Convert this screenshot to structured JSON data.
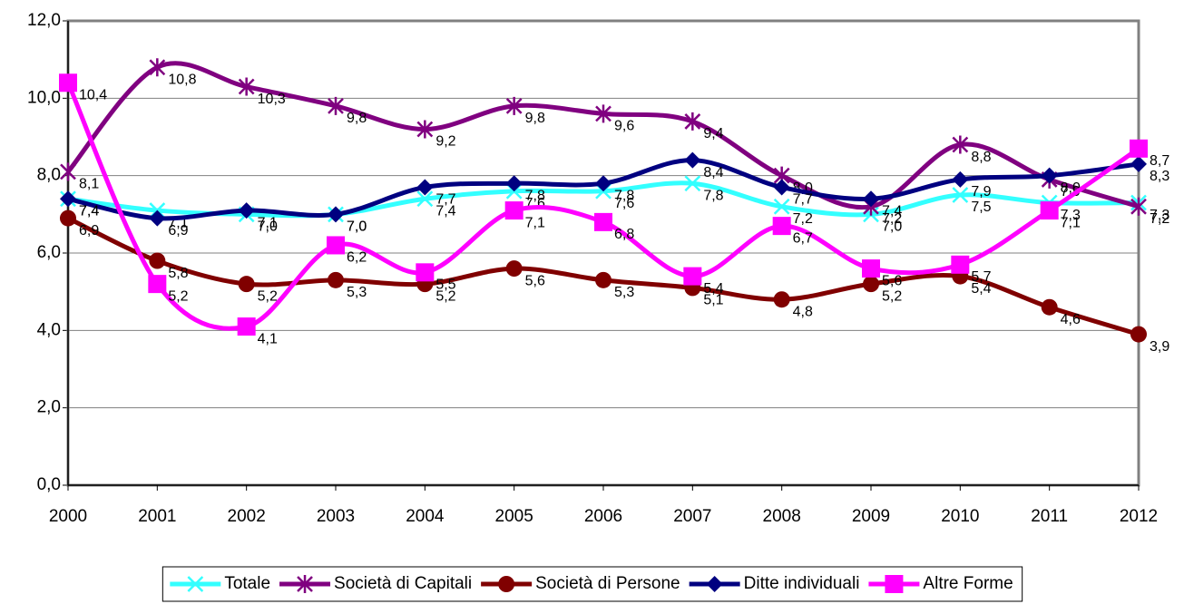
{
  "chart_data": {
    "type": "line",
    "categories": [
      "2000",
      "2001",
      "2002",
      "2003",
      "2004",
      "2005",
      "2006",
      "2007",
      "2008",
      "2009",
      "2010",
      "2011",
      "2012"
    ],
    "ylim": [
      0,
      12
    ],
    "yticks": [
      {
        "value": 0,
        "label": "0,0"
      },
      {
        "value": 2,
        "label": "2,0"
      },
      {
        "value": 4,
        "label": "4,0"
      },
      {
        "value": 6,
        "label": "6,0"
      },
      {
        "value": 8,
        "label": "8,0"
      },
      {
        "value": 10,
        "label": "10,0"
      },
      {
        "value": 12,
        "label": "12,0"
      }
    ],
    "grid": true,
    "smooth": true,
    "legend": "bottom",
    "series": [
      {
        "name": "Totale",
        "color": "#33ffff",
        "marker": "x",
        "values": [
          7.4,
          7.1,
          7.0,
          7.0,
          7.4,
          7.6,
          7.6,
          7.8,
          7.2,
          7.0,
          7.5,
          7.3,
          7.3
        ],
        "value_labels": [
          "7,4",
          "7,1",
          "7,0",
          "7,0",
          "7,4",
          "7,6",
          "7,6",
          "7,8",
          "7,2",
          "7,0",
          "7,5",
          "7,3",
          "7,3"
        ]
      },
      {
        "name": "Società di Capitali",
        "color": "#800080",
        "marker": "star",
        "values": [
          8.1,
          10.8,
          10.3,
          9.8,
          9.2,
          9.8,
          9.6,
          9.4,
          8.0,
          7.2,
          8.8,
          7.9,
          7.2
        ],
        "value_labels": [
          "8,1",
          "10,8",
          "10,3",
          "9,8",
          "9,2",
          "9,8",
          "9,6",
          "9,4",
          "8,0",
          "7,2",
          "8,8",
          "7,9",
          "7,2"
        ]
      },
      {
        "name": "Società di Persone",
        "color": "#800000",
        "marker": "circle",
        "values": [
          6.9,
          5.8,
          5.2,
          5.3,
          5.2,
          5.6,
          5.3,
          5.1,
          4.8,
          5.2,
          5.4,
          4.6,
          3.9
        ],
        "value_labels": [
          "6,9",
          "5,8",
          "5,2",
          "5,3",
          "5,2",
          "5,6",
          "5,3",
          "5,1",
          "4,8",
          "5,2",
          "5,4",
          "4,6",
          "3,9"
        ]
      },
      {
        "name": "Ditte individuali",
        "color": "#000080",
        "marker": "diamond",
        "values": [
          7.4,
          6.9,
          7.1,
          7.0,
          7.7,
          7.8,
          7.8,
          8.4,
          7.7,
          7.4,
          7.9,
          8.0,
          8.3
        ],
        "value_labels": [
          "7,4",
          "6,9",
          "7,1",
          "7,0",
          "7,7",
          "7,8",
          "7,8",
          "8,4",
          "7,7",
          "7,4",
          "7,9",
          "8,0",
          "8,3"
        ]
      },
      {
        "name": "Altre Forme",
        "color": "#ff00ff",
        "marker": "square",
        "values": [
          10.4,
          5.2,
          4.1,
          6.2,
          5.5,
          7.1,
          6.8,
          5.4,
          6.7,
          5.6,
          5.7,
          7.1,
          8.7
        ],
        "value_labels": [
          "10,4",
          "5,2",
          "4,1",
          "6,2",
          "5,5",
          "7,1",
          "6,8",
          "5,4",
          "6,7",
          "5,6",
          "5,7",
          "7,1",
          "8,7"
        ]
      }
    ]
  }
}
